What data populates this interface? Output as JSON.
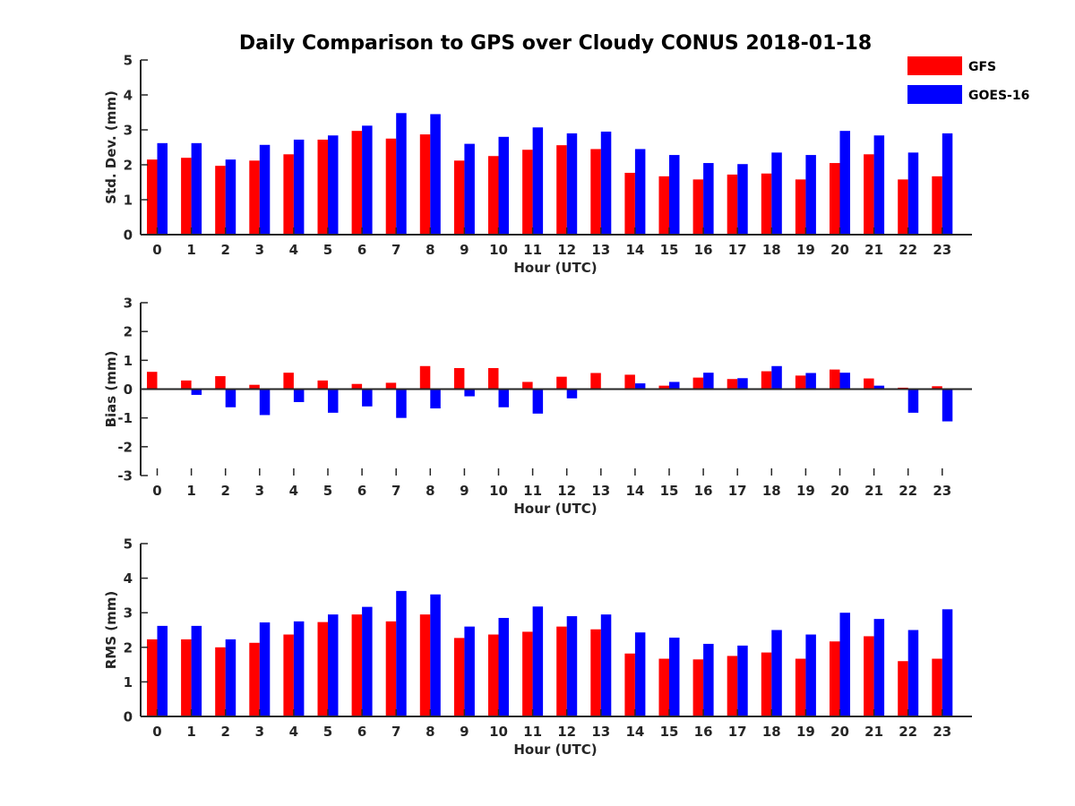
{
  "title": "Daily Comparison to GPS over Cloudy CONUS 2018-01-18",
  "legend": {
    "placement": "top-right",
    "entries": [
      {
        "name": "GFS",
        "color": "#ff0000"
      },
      {
        "name": "GOES-16",
        "color": "#0000ff"
      }
    ]
  },
  "chart_data": [
    {
      "type": "bar",
      "ylabel": "Std. Dev. (mm)",
      "xlabel": "Hour (UTC)",
      "ylim": [
        0,
        5
      ],
      "yticks": [
        0,
        1,
        2,
        3,
        4,
        5
      ],
      "categories": [
        "0",
        "1",
        "2",
        "3",
        "4",
        "5",
        "6",
        "7",
        "8",
        "9",
        "10",
        "11",
        "12",
        "13",
        "14",
        "15",
        "16",
        "17",
        "18",
        "19",
        "20",
        "21",
        "22",
        "23"
      ],
      "series": [
        {
          "name": "GFS",
          "color": "#ff0000",
          "values": [
            2.15,
            2.2,
            1.97,
            2.12,
            2.3,
            2.72,
            2.97,
            2.75,
            2.87,
            2.12,
            2.25,
            2.43,
            2.56,
            2.45,
            1.77,
            1.67,
            1.58,
            1.72,
            1.75,
            1.58,
            2.05,
            2.3,
            1.58,
            1.67
          ]
        },
        {
          "name": "GOES-16",
          "color": "#0000ff",
          "values": [
            2.62,
            2.62,
            2.15,
            2.57,
            2.72,
            2.84,
            3.12,
            3.48,
            3.45,
            2.6,
            2.8,
            3.07,
            2.9,
            2.95,
            2.45,
            2.28,
            2.05,
            2.02,
            2.35,
            2.28,
            2.97,
            2.84,
            2.35,
            2.9
          ]
        }
      ]
    },
    {
      "type": "bar",
      "ylabel": "Bias (mm)",
      "xlabel": "Hour (UTC)",
      "ylim": [
        -3,
        3
      ],
      "yticks": [
        -3,
        -2,
        -1,
        0,
        1,
        2,
        3
      ],
      "categories": [
        "0",
        "1",
        "2",
        "3",
        "4",
        "5",
        "6",
        "7",
        "8",
        "9",
        "10",
        "11",
        "12",
        "13",
        "14",
        "15",
        "16",
        "17",
        "18",
        "19",
        "20",
        "21",
        "22",
        "23"
      ],
      "series": [
        {
          "name": "GFS",
          "color": "#ff0000",
          "values": [
            0.6,
            0.3,
            0.45,
            0.15,
            0.57,
            0.3,
            0.18,
            0.22,
            0.8,
            0.73,
            0.73,
            0.25,
            0.43,
            0.56,
            0.5,
            0.12,
            0.4,
            0.35,
            0.62,
            0.47,
            0.68,
            0.37,
            0.05,
            0.1
          ]
        },
        {
          "name": "GOES-16",
          "color": "#0000ff",
          "values": [
            0.0,
            -0.2,
            -0.63,
            -0.9,
            -0.45,
            -0.82,
            -0.6,
            -1.0,
            -0.67,
            -0.25,
            -0.63,
            -0.85,
            -0.32,
            0.03,
            0.2,
            0.25,
            0.57,
            0.38,
            0.8,
            0.56,
            0.57,
            0.12,
            -0.82,
            -1.12
          ]
        }
      ]
    },
    {
      "type": "bar",
      "ylabel": "RMS (mm)",
      "xlabel": "Hour (UTC)",
      "ylim": [
        0,
        5
      ],
      "yticks": [
        0,
        1,
        2,
        3,
        4,
        5
      ],
      "categories": [
        "0",
        "1",
        "2",
        "3",
        "4",
        "5",
        "6",
        "7",
        "8",
        "9",
        "10",
        "11",
        "12",
        "13",
        "14",
        "15",
        "16",
        "17",
        "18",
        "19",
        "20",
        "21",
        "22",
        "23"
      ],
      "series": [
        {
          "name": "GFS",
          "color": "#ff0000",
          "values": [
            2.23,
            2.23,
            2.0,
            2.13,
            2.37,
            2.73,
            2.95,
            2.75,
            2.95,
            2.27,
            2.37,
            2.45,
            2.6,
            2.52,
            1.82,
            1.67,
            1.65,
            1.75,
            1.85,
            1.67,
            2.17,
            2.32,
            1.6,
            1.67
          ]
        },
        {
          "name": "GOES-16",
          "color": "#0000ff",
          "values": [
            2.62,
            2.62,
            2.23,
            2.72,
            2.75,
            2.95,
            3.17,
            3.63,
            3.53,
            2.6,
            2.85,
            3.18,
            2.9,
            2.95,
            2.43,
            2.28,
            2.1,
            2.05,
            2.5,
            2.37,
            3.0,
            2.82,
            2.5,
            3.1
          ]
        }
      ]
    }
  ]
}
